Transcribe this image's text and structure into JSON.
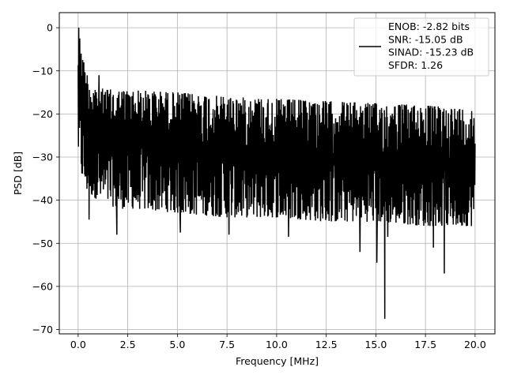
{
  "chart_data": {
    "type": "line",
    "title": "",
    "xlabel": "Frequency [MHz]",
    "ylabel": "PSD [dB]",
    "xlim": [
      -0.95,
      21.0
    ],
    "ylim": [
      -71.0,
      3.5
    ],
    "x_ticks": [
      0.0,
      2.5,
      5.0,
      7.5,
      10.0,
      12.5,
      15.0,
      17.5,
      20.0
    ],
    "x_tick_labels": [
      "0.0",
      "2.5",
      "5.0",
      "7.5",
      "10.0",
      "12.5",
      "15.0",
      "17.5",
      "20.0"
    ],
    "y_ticks": [
      0,
      -10,
      -20,
      -30,
      -40,
      -50,
      -60,
      -70
    ],
    "y_tick_labels": [
      "0",
      "−10",
      "−20",
      "−30",
      "−40",
      "−50",
      "−60",
      "−70"
    ],
    "grid": true,
    "legend_position": "top-right",
    "series": [
      {
        "legend_lines": [
          "ENOB: -2.82 bits",
          "SNR: -15.05 dB",
          "SINAD: -15.23 dB",
          "SFDR: 1.26"
        ],
        "color": "#000000",
        "x_range": [
          0.0,
          20.0
        ],
        "envelope_x": [
          0.0,
          0.05,
          0.1,
          0.2,
          0.4,
          0.7,
          1.0,
          2.0,
          3.0,
          5.0,
          7.5,
          10.0,
          12.5,
          15.0,
          17.5,
          20.0
        ],
        "envelope_upper": [
          -3,
          0,
          -2.5,
          -6,
          -10,
          -12.5,
          -14,
          -14.5,
          -14.5,
          -15,
          -16,
          -16.5,
          -17,
          -17.5,
          -18,
          -19
        ],
        "envelope_lower": [
          -29,
          -31,
          -33,
          -35,
          -38,
          -39,
          -40,
          -42,
          -42,
          -43,
          -44,
          -44,
          -45,
          -45,
          -46,
          -46
        ],
        "notable_dips": [
          {
            "x": 0.55,
            "y": -44.5
          },
          {
            "x": 1.95,
            "y": -48.0
          },
          {
            "x": 5.15,
            "y": -47.5
          },
          {
            "x": 7.6,
            "y": -48.0
          },
          {
            "x": 10.6,
            "y": -48.5
          },
          {
            "x": 14.2,
            "y": -52.0
          },
          {
            "x": 15.05,
            "y": -54.5
          },
          {
            "x": 15.45,
            "y": -67.5
          },
          {
            "x": 15.6,
            "y": -48.5
          },
          {
            "x": 17.9,
            "y": -51.0
          },
          {
            "x": 18.45,
            "y": -57.0
          }
        ],
        "notable_peaks": [
          {
            "x": 0.03,
            "y": 0.0
          },
          {
            "x": 0.08,
            "y": -2.5
          },
          {
            "x": 0.15,
            "y": -6.0
          },
          {
            "x": 1.05,
            "y": -11.0
          }
        ]
      }
    ]
  }
}
